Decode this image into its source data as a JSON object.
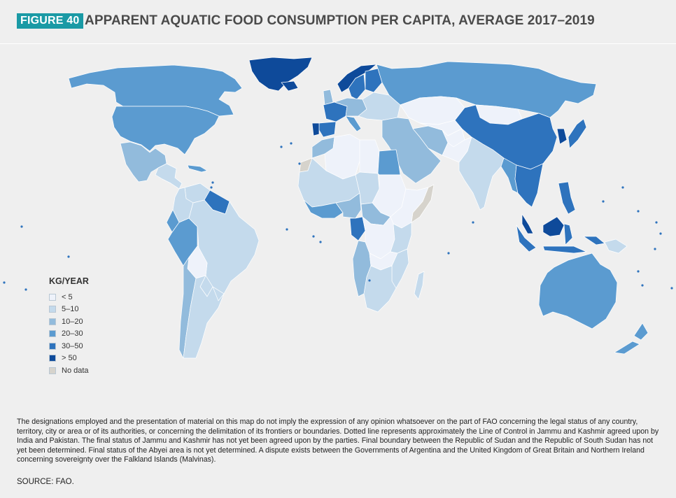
{
  "figure": {
    "label": "FIGURE 40",
    "title": "APPARENT AQUATIC FOOD CONSUMPTION PER CAPITA, AVERAGE 2017–2019"
  },
  "legend": {
    "title": "KG/YEAR",
    "items": [
      {
        "label": "< 5",
        "color": "#eef2fa"
      },
      {
        "label": "5–10",
        "color": "#c4daec"
      },
      {
        "label": "10–20",
        "color": "#92bbdc"
      },
      {
        "label": "20–30",
        "color": "#5b9bd0"
      },
      {
        "label": "30–50",
        "color": "#2e73bd"
      },
      {
        "label": "> 50",
        "color": "#0e4a9a"
      },
      {
        "label": "No data",
        "color": "#d6d3cc"
      }
    ]
  },
  "map_regions": [
    {
      "region": "Canada",
      "class": "20–30"
    },
    {
      "region": "United States",
      "class": "20–30"
    },
    {
      "region": "Greenland",
      "class": "> 50"
    },
    {
      "region": "Mexico",
      "class": "10–20"
    },
    {
      "region": "Central America",
      "class": "5–10"
    },
    {
      "region": "Caribbean",
      "class": "20–30"
    },
    {
      "region": "Venezuela",
      "class": "5–10"
    },
    {
      "region": "Guianas",
      "class": "30–50"
    },
    {
      "region": "Colombia",
      "class": "5–10"
    },
    {
      "region": "Ecuador",
      "class": "20–30"
    },
    {
      "region": "Peru",
      "class": "20–30"
    },
    {
      "region": "Brazil",
      "class": "5–10"
    },
    {
      "region": "Bolivia",
      "class": "< 5"
    },
    {
      "region": "Paraguay",
      "class": "5–10"
    },
    {
      "region": "Chile",
      "class": "10–20"
    },
    {
      "region": "Argentina",
      "class": "5–10"
    },
    {
      "region": "Uruguay",
      "class": "5–10"
    },
    {
      "region": "Iceland",
      "class": "> 50"
    },
    {
      "region": "Norway",
      "class": "> 50"
    },
    {
      "region": "Sweden",
      "class": "30–50"
    },
    {
      "region": "Finland",
      "class": "30–50"
    },
    {
      "region": "United Kingdom",
      "class": "10–20"
    },
    {
      "region": "France",
      "class": "30–50"
    },
    {
      "region": "Spain",
      "class": "30–50"
    },
    {
      "region": "Portugal",
      "class": "> 50"
    },
    {
      "region": "Central Europe",
      "class": "10–20"
    },
    {
      "region": "Eastern Europe",
      "class": "5–10"
    },
    {
      "region": "Italy",
      "class": "20–30"
    },
    {
      "region": "Russia",
      "class": "20–30"
    },
    {
      "region": "Kazakhstan",
      "class": "< 5"
    },
    {
      "region": "Mongolia",
      "class": "< 5"
    },
    {
      "region": "China",
      "class": "30–50"
    },
    {
      "region": "Korea",
      "class": "> 50"
    },
    {
      "region": "Japan",
      "class": "30–50"
    },
    {
      "region": "Middle East",
      "class": "10–20"
    },
    {
      "region": "Iran",
      "class": "10–20"
    },
    {
      "region": "Central Asia",
      "class": "< 5"
    },
    {
      "region": "Afghanistan",
      "class": "< 5"
    },
    {
      "region": "Pakistan",
      "class": "< 5"
    },
    {
      "region": "India",
      "class": "5–10"
    },
    {
      "region": "Myanmar",
      "class": "20–30"
    },
    {
      "region": "Indochina",
      "class": "30–50"
    },
    {
      "region": "Malaysia",
      "class": "> 50"
    },
    {
      "region": "Indonesia",
      "class": "30–50"
    },
    {
      "region": "Philippines",
      "class": "30–50"
    },
    {
      "region": "Papua New Guinea",
      "class": "5–10"
    },
    {
      "region": "Australia",
      "class": "20–30"
    },
    {
      "region": "New Zealand",
      "class": "20–30"
    },
    {
      "region": "Morocco",
      "class": "10–20"
    },
    {
      "region": "Algeria",
      "class": "< 5"
    },
    {
      "region": "Libya",
      "class": "< 5"
    },
    {
      "region": "Egypt",
      "class": "20–30"
    },
    {
      "region": "Western Sahara",
      "class": "No data"
    },
    {
      "region": "West Africa Sahel",
      "class": "5–10"
    },
    {
      "region": "Coastal West Africa",
      "class": "20–30"
    },
    {
      "region": "Nigeria",
      "class": "10–20"
    },
    {
      "region": "Chad",
      "class": "5–10"
    },
    {
      "region": "Sudan",
      "class": "< 5"
    },
    {
      "region": "Horn of Africa",
      "class": "< 5"
    },
    {
      "region": "Somalia",
      "class": "No data"
    },
    {
      "region": "Central Africa",
      "class": "10–20"
    },
    {
      "region": "Gabon and Congo",
      "class": "30–50"
    },
    {
      "region": "DR Congo",
      "class": "< 5"
    },
    {
      "region": "Tanzania",
      "class": "5–10"
    },
    {
      "region": "Angola and Namibia",
      "class": "10–20"
    },
    {
      "region": "Zambia",
      "class": "< 5"
    },
    {
      "region": "Mozambique",
      "class": "5–10"
    },
    {
      "region": "South Africa",
      "class": "5–10"
    },
    {
      "region": "Madagascar",
      "class": "5–10"
    }
  ],
  "footnote": "The designations employed and the presentation of material on this map do not imply the expression of any opinion whatsoever on the part of FAO concerning the legal status of any country, territory, city or area or of its authorities, or concerning the delimitation of its frontiers or boundaries. Dotted line represents approximately the Line of Control in Jammu and Kashmir agreed upon by India and Pakistan. The final status of Jammu and Kashmir has not yet been agreed upon by the parties. Final boundary between the Republic of Sudan and the Republic of South Sudan has not yet been determined. Final status of the Abyei area is not yet determined. A dispute exists between the Governments of Argentina and the United Kingdom of Great Britain and Northern Ireland concerning sovereignty over the Falkland Islands (Malvinas).",
  "source": "SOURCE: FAO."
}
